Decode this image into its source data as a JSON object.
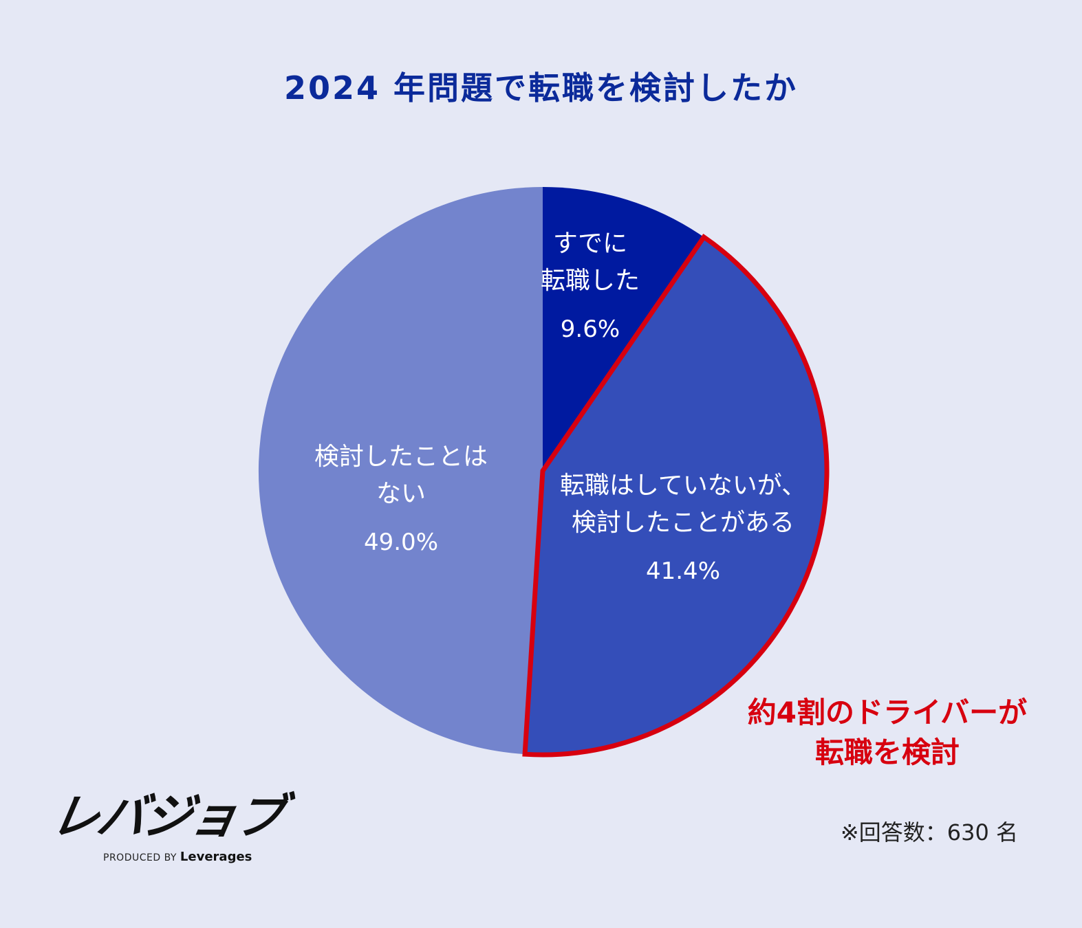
{
  "title": "2024 年問題で転職を検討したか",
  "chart_data": {
    "type": "pie",
    "title": "2024 年問題で転職を検討したか",
    "unit": "%",
    "slices": [
      {
        "label_lines": [
          "すでに",
          "転職した"
        ],
        "value": 9.6,
        "value_label": "9.6%",
        "color": "#001aa0",
        "highlight": false
      },
      {
        "label_lines": [
          "転職はしていないが、",
          "検討したことがある"
        ],
        "value": 41.4,
        "value_label": "41.4%",
        "color": "#344eb9",
        "highlight": true
      },
      {
        "label_lines": [
          "検討したことは",
          "ない"
        ],
        "value": 49.0,
        "value_label": "49.0%",
        "color": "#7384cd",
        "highlight": false
      }
    ],
    "highlight_color": "#d7000f"
  },
  "callout": {
    "line1": "約4割のドライバーが",
    "line2": "転職を検討"
  },
  "logo": {
    "name": "レバジョブ",
    "produced_by": "PRODUCED BY",
    "brand": "Leverages"
  },
  "note": "※回答数：630 名"
}
